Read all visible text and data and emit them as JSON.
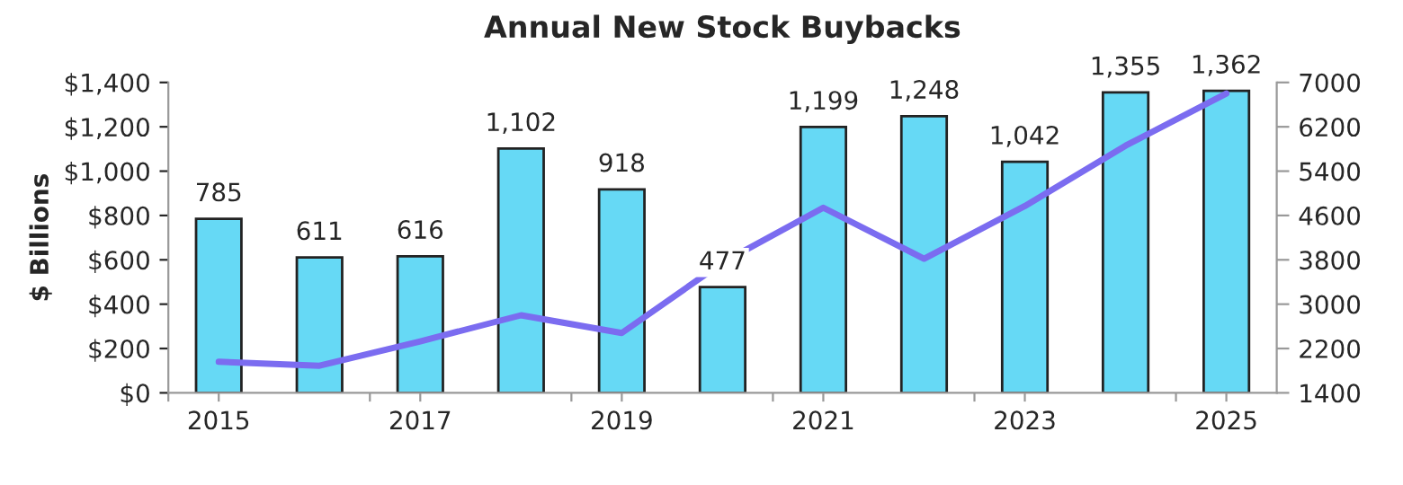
{
  "chart_data": {
    "type": "bar",
    "title": "Annual New Stock Buybacks",
    "ylabel": "$ Billions",
    "x": [
      2015,
      2016,
      2017,
      2018,
      2019,
      2020,
      2021,
      2022,
      2023,
      2024,
      2025
    ],
    "series": [
      {
        "color": "#66d9f5",
        "values": [
          785,
          611,
          616,
          1102,
          918,
          477,
          1199,
          1248,
          1042,
          1355,
          1362
        ],
        "value_labels": [
          "785",
          "611",
          "616",
          "1,102",
          "918",
          "477",
          "1,199",
          "1,248",
          "1,042",
          "1,355",
          "1,362"
        ]
      },
      {
        "type": "line",
        "axis": "y2",
        "color": "#7b6cf0",
        "values": [
          1960,
          1890,
          2330,
          2800,
          2480,
          3750,
          4740,
          3820,
          4770,
          5860,
          6800
        ]
      }
    ],
    "xlim": [
      2014.5,
      2025.5
    ],
    "xticks": [
      {
        "value": 2014.5,
        "label": null
      },
      2015,
      {
        "value": 2016.5,
        "label": null
      },
      2017,
      {
        "value": 2018.5,
        "label": null
      },
      2019,
      {
        "value": 2020.5,
        "label": null
      },
      2021,
      {
        "value": 2022.5,
        "label": null
      },
      2023,
      {
        "value": 2024.5,
        "label": null
      },
      2025
    ],
    "ylim": [
      0,
      1400
    ],
    "yticks": [
      {
        "value": 0,
        "label": "$0"
      },
      {
        "value": 200,
        "label": "$200"
      },
      {
        "value": 400,
        "label": "$400"
      },
      {
        "value": 600,
        "label": "$600"
      },
      {
        "value": 800,
        "label": "$800"
      },
      {
        "value": 1000,
        "label": "$1,000"
      },
      {
        "value": 1200,
        "label": "$1,200"
      },
      {
        "value": 1400,
        "label": "$1,400"
      }
    ],
    "y2lim": [
      1400,
      7000
    ],
    "y2ticks": [
      1400,
      2200,
      3000,
      3800,
      4600,
      5400,
      6200,
      7000
    ],
    "grid": false,
    "legend": false
  }
}
